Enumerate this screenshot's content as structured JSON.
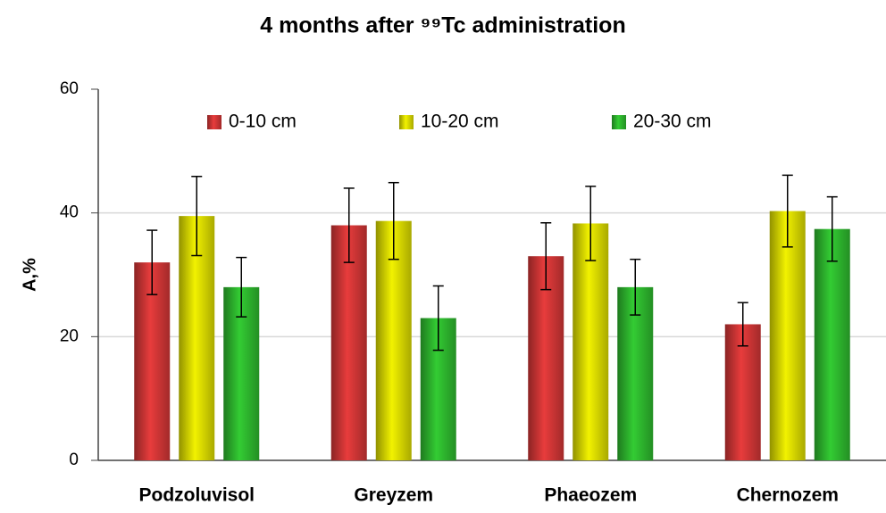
{
  "chart_data": {
    "type": "bar",
    "title": "4 months after ⁹⁹Tc administration",
    "ylabel": "A,%",
    "categories": [
      "Podzoluvisol",
      "Greyzem",
      "Phaeozem",
      "Chernozem"
    ],
    "series": [
      {
        "name": "0-10 cm",
        "color": "#e83c3c",
        "values": [
          32,
          38,
          33,
          22
        ],
        "errors": [
          5.2,
          6,
          5.4,
          3.5
        ]
      },
      {
        "name": "10-20 cm",
        "color": "#f2f200",
        "values": [
          39.5,
          38.7,
          38.3,
          40.3
        ],
        "errors": [
          6.4,
          6.2,
          6,
          5.8
        ]
      },
      {
        "name": "20-30 cm",
        "color": "#33cc33",
        "values": [
          28,
          23,
          28,
          37.4
        ],
        "errors": [
          4.8,
          5.2,
          4.5,
          5.2
        ]
      }
    ],
    "ylim": [
      0,
      60
    ],
    "yticks": [
      0,
      20,
      40,
      60
    ],
    "grid": true,
    "legend": "top"
  }
}
